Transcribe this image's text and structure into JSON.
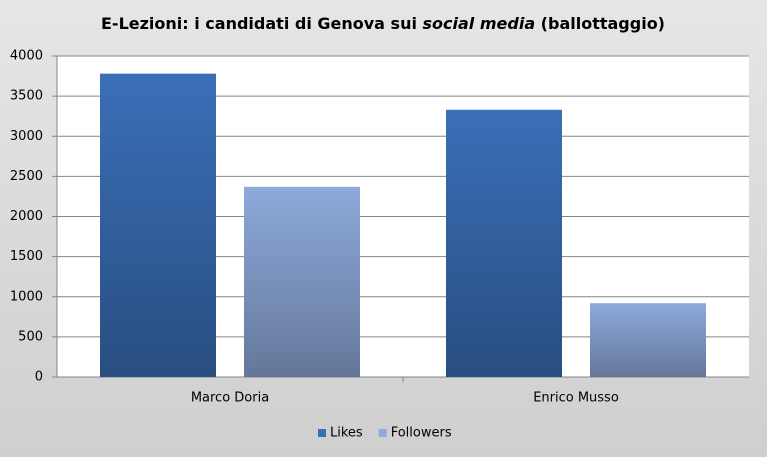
{
  "chart_data": {
    "type": "bar",
    "title": [
      {
        "text": "E-Lezioni: i candidati di Genova sui ",
        "italic": false
      },
      {
        "text": "social media",
        "italic": true
      },
      {
        "text": " (ballottaggio)",
        "italic": false
      }
    ],
    "categories": [
      "Marco Doria",
      "Enrico Musso"
    ],
    "series": [
      {
        "name": "Likes",
        "color": "#3a6fb8",
        "values": [
          3780,
          3330
        ]
      },
      {
        "name": "Followers",
        "color": "#8eaadb",
        "values": [
          2370,
          920
        ]
      }
    ],
    "ylim": [
      0,
      4000
    ],
    "yticks": [
      0,
      500,
      1000,
      1500,
      2000,
      2500,
      3000,
      3500,
      4000
    ],
    "grid": true,
    "legend": "bottom"
  }
}
